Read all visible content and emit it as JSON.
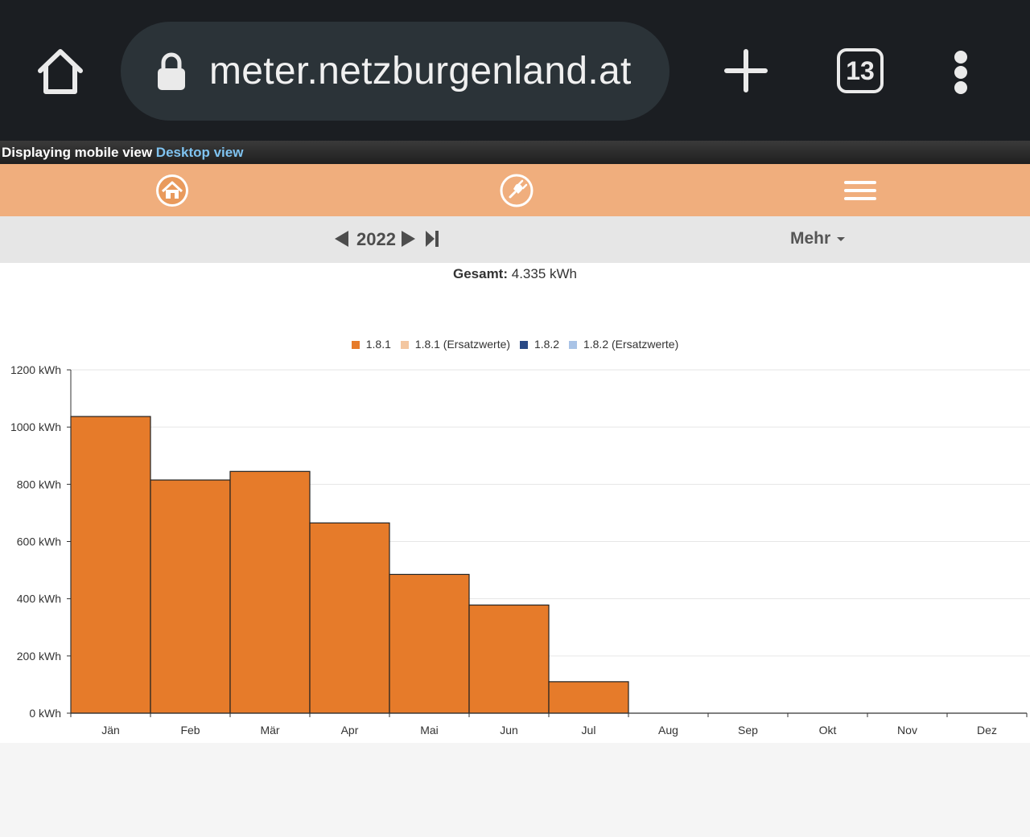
{
  "browser": {
    "url": "meter.netzburgenland.at",
    "tab_count": "13"
  },
  "mobile_bar": {
    "label": "Displaying mobile view",
    "link": "Desktop view"
  },
  "controls": {
    "year": "2022",
    "more_label": "Mehr"
  },
  "summary": {
    "label": "Gesamt:",
    "value": "4.335 kWh"
  },
  "colors": {
    "nav_bg": "#f0ae7d",
    "bar": "#e67b2a"
  },
  "icons": {
    "home": "home-circle-icon",
    "plug": "plug-circle-icon",
    "menu": "hamburger-icon"
  },
  "legend": [
    {
      "label": "1.8.1",
      "color": "#e67b2a"
    },
    {
      "label": "1.8.1 (Ersatzwerte)",
      "color": "#f3c6a0"
    },
    {
      "label": "1.8.2",
      "color": "#2a4a86"
    },
    {
      "label": "1.8.2 (Ersatzwerte)",
      "color": "#a9c3e6"
    }
  ],
  "chart_data": {
    "type": "bar",
    "categories": [
      "Jän",
      "Feb",
      "Mär",
      "Apr",
      "Mai",
      "Jun",
      "Jul",
      "Aug",
      "Sep",
      "Okt",
      "Nov",
      "Dez"
    ],
    "series": [
      {
        "name": "1.8.1",
        "values": [
          1037,
          815,
          845,
          665,
          485,
          378,
          110,
          0,
          0,
          0,
          0,
          0
        ]
      },
      {
        "name": "1.8.1 (Ersatzwerte)",
        "values": [
          0,
          0,
          0,
          0,
          0,
          0,
          0,
          0,
          0,
          0,
          0,
          0
        ]
      },
      {
        "name": "1.8.2",
        "values": [
          0,
          0,
          0,
          0,
          0,
          0,
          0,
          0,
          0,
          0,
          0,
          0
        ]
      },
      {
        "name": "1.8.2 (Ersatzwerte)",
        "values": [
          0,
          0,
          0,
          0,
          0,
          0,
          0,
          0,
          0,
          0,
          0,
          0
        ]
      }
    ],
    "y_ticks": [
      "0 kWh",
      "200 kWh",
      "400 kWh",
      "600 kWh",
      "800 kWh",
      "1000 kWh",
      "1200 kWh"
    ],
    "ylim": [
      0,
      1200
    ],
    "grid": true,
    "legend_position": "top-center"
  }
}
